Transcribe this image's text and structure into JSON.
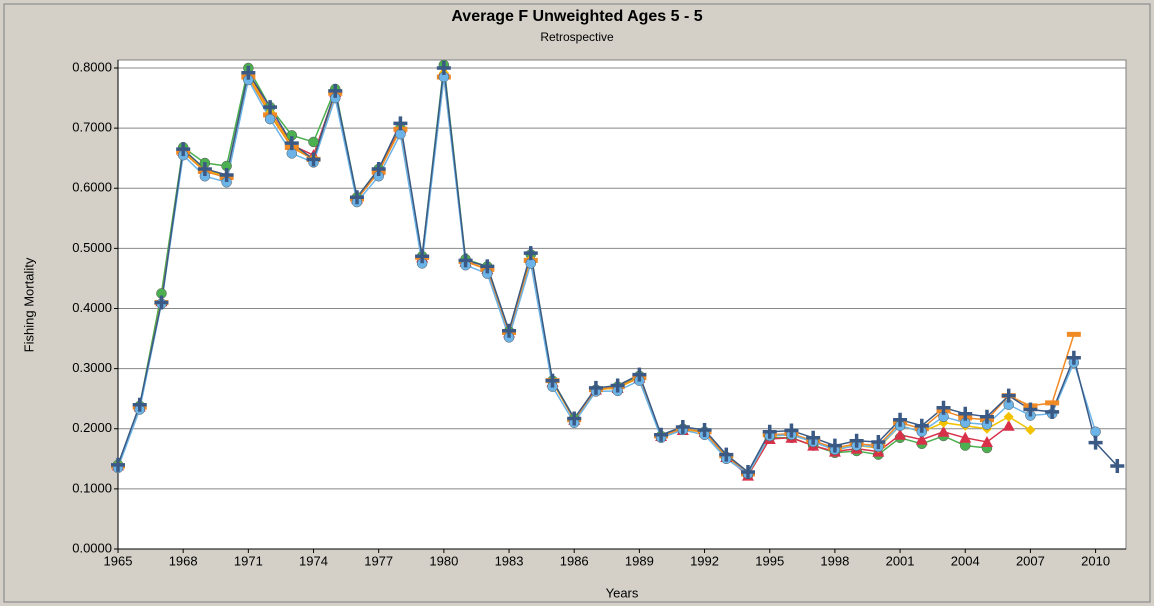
{
  "chart_data": {
    "type": "line",
    "title": "Average F Unweighted Ages 5 - 5",
    "subtitle": "Retrospective",
    "xlabel": "Years",
    "ylabel": "Fishing Mortality",
    "x": [
      1965,
      1966,
      1967,
      1968,
      1969,
      1970,
      1971,
      1972,
      1973,
      1974,
      1975,
      1976,
      1977,
      1978,
      1979,
      1980,
      1981,
      1982,
      1983,
      1984,
      1985,
      1986,
      1987,
      1988,
      1989,
      1990,
      1991,
      1992,
      1993,
      1994,
      1995,
      1996,
      1997,
      1998,
      1999,
      2000,
      2001,
      2002,
      2003,
      2004,
      2005,
      2006,
      2007,
      2008,
      2009,
      2010,
      2011
    ],
    "xlim": [
      1965,
      2011.4
    ],
    "xticks": [
      1965,
      1968,
      1971,
      1974,
      1977,
      1980,
      1983,
      1986,
      1989,
      1992,
      1995,
      1998,
      2001,
      2004,
      2007,
      2010
    ],
    "ylim": [
      0,
      0.8
    ],
    "yticks": [
      {
        "value": 0,
        "label": "0.0000"
      },
      {
        "value": 0.1,
        "label": "0.1000"
      },
      {
        "value": 0.2,
        "label": "0.2000"
      },
      {
        "value": 0.3,
        "label": "0.3000"
      },
      {
        "value": 0.4,
        "label": "0.4000"
      },
      {
        "value": 0.5,
        "label": "0.5000"
      },
      {
        "value": 0.6,
        "label": "0.6000"
      },
      {
        "value": 0.7,
        "label": "0.7000"
      },
      {
        "value": 0.8,
        "label": "0.8000"
      }
    ],
    "grid": true,
    "series": [
      {
        "color": "#4caf50",
        "marker": "circle",
        "values": [
          0.14,
          0.238,
          0.425,
          0.668,
          0.642,
          0.637,
          0.8,
          0.735,
          0.688,
          0.677,
          0.765,
          0.585,
          0.632,
          0.7,
          0.487,
          0.805,
          0.482,
          0.47,
          0.362,
          0.49,
          0.28,
          0.217,
          0.265,
          0.27,
          0.288,
          0.188,
          0.2,
          0.195,
          0.153,
          0.123,
          0.185,
          0.185,
          0.172,
          0.16,
          0.163,
          0.157,
          0.185,
          0.175,
          0.188,
          0.172,
          0.168,
          null,
          null,
          null,
          null,
          null,
          null
        ]
      },
      {
        "color": "#d9304a",
        "marker": "triangle",
        "values": [
          0.139,
          0.237,
          0.412,
          0.662,
          0.632,
          0.622,
          0.79,
          0.728,
          0.672,
          0.655,
          0.76,
          0.583,
          0.63,
          0.7,
          0.485,
          0.795,
          0.478,
          0.466,
          0.36,
          0.484,
          0.278,
          0.215,
          0.265,
          0.268,
          0.285,
          0.188,
          0.198,
          0.195,
          0.153,
          0.122,
          0.183,
          0.185,
          0.172,
          0.162,
          0.167,
          0.162,
          0.19,
          0.182,
          0.195,
          0.185,
          0.178,
          0.205,
          null,
          null,
          null,
          null,
          null
        ]
      },
      {
        "color": "#f2c200",
        "marker": "diamond",
        "values": [
          0.139,
          0.237,
          0.411,
          0.662,
          0.63,
          0.62,
          0.788,
          0.726,
          0.67,
          0.65,
          0.758,
          0.582,
          0.628,
          0.698,
          0.484,
          0.792,
          0.478,
          0.466,
          0.36,
          0.482,
          0.278,
          0.215,
          0.265,
          0.268,
          0.285,
          0.188,
          0.198,
          0.195,
          0.154,
          0.124,
          0.188,
          0.19,
          0.178,
          0.166,
          0.172,
          0.168,
          0.205,
          0.195,
          0.21,
          0.205,
          0.2,
          0.22,
          0.198,
          null,
          null,
          null,
          null
        ]
      },
      {
        "color": "#f08a24",
        "marker": "dash",
        "values": [
          0.138,
          0.236,
          0.41,
          0.66,
          0.628,
          0.618,
          0.785,
          0.722,
          0.668,
          0.648,
          0.758,
          0.582,
          0.627,
          0.698,
          0.485,
          0.785,
          0.478,
          0.465,
          0.36,
          0.48,
          0.28,
          0.215,
          0.265,
          0.27,
          0.285,
          0.188,
          0.2,
          0.195,
          0.155,
          0.125,
          0.19,
          0.192,
          0.18,
          0.168,
          0.175,
          0.172,
          0.21,
          0.2,
          0.23,
          0.218,
          0.215,
          0.255,
          0.238,
          0.243,
          0.357,
          null,
          null
        ]
      },
      {
        "color": "#6cb4e8",
        "marker": "circle",
        "values": [
          0.135,
          0.232,
          0.408,
          0.655,
          0.62,
          0.61,
          0.78,
          0.715,
          0.658,
          0.643,
          0.75,
          0.577,
          0.62,
          0.69,
          0.475,
          0.785,
          0.472,
          0.458,
          0.352,
          0.475,
          0.27,
          0.21,
          0.262,
          0.263,
          0.28,
          0.185,
          0.198,
          0.19,
          0.15,
          0.125,
          0.188,
          0.19,
          0.178,
          0.165,
          0.172,
          0.17,
          0.205,
          0.195,
          0.22,
          0.21,
          0.207,
          0.24,
          0.222,
          0.225,
          0.31,
          0.195,
          null
        ]
      },
      {
        "color": "#3a5a85",
        "marker": "plus",
        "values": [
          0.14,
          0.24,
          0.41,
          0.665,
          0.632,
          0.622,
          0.792,
          0.735,
          0.675,
          0.648,
          0.762,
          0.585,
          0.632,
          0.708,
          0.487,
          0.8,
          0.48,
          0.47,
          0.363,
          0.492,
          0.28,
          0.217,
          0.268,
          0.272,
          0.29,
          0.19,
          0.203,
          0.198,
          0.157,
          0.128,
          0.195,
          0.197,
          0.185,
          0.172,
          0.18,
          0.178,
          0.215,
          0.205,
          0.235,
          0.225,
          0.22,
          0.255,
          0.232,
          0.228,
          0.318,
          0.177,
          0.138
        ]
      }
    ]
  }
}
